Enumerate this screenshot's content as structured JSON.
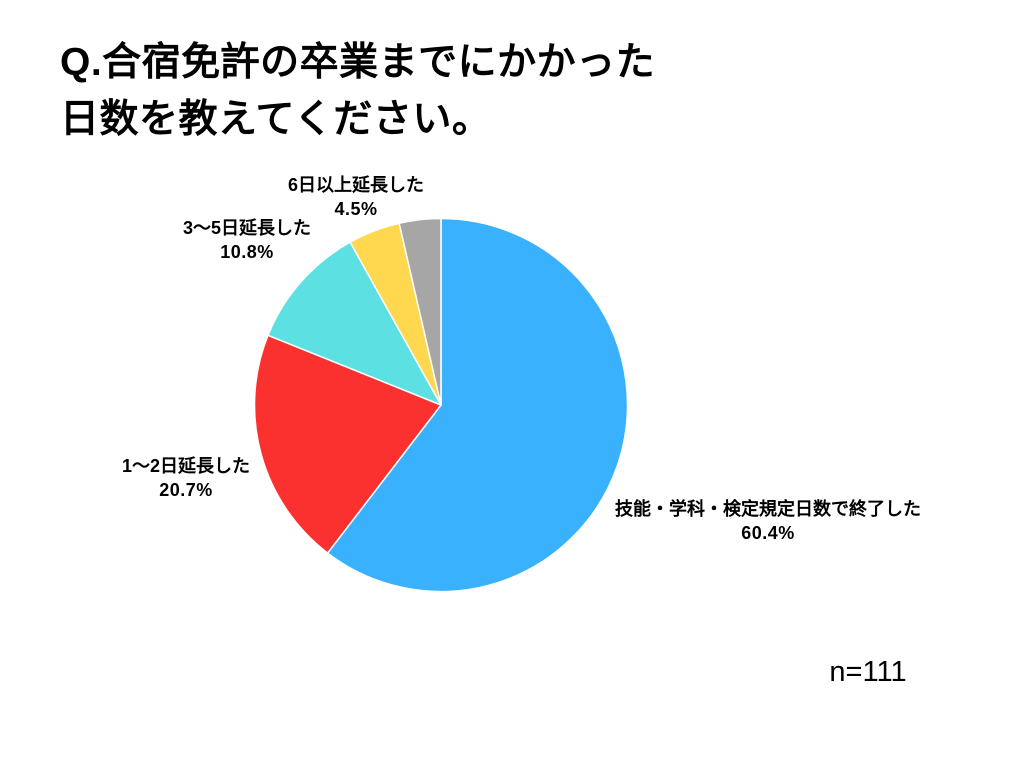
{
  "header": {
    "title_line1": "Q.合宿免許の卒業までにかかった",
    "title_line2": "日数を教えてください。"
  },
  "footer": {
    "sample_size": "n=111"
  },
  "chart_data": {
    "type": "pie",
    "title": "Q.合宿免許の卒業までにかかった日数を教えてください。",
    "sample_size_label": "n=111",
    "start_angle_deg": 0,
    "direction": "clockwise",
    "legend_position": "none",
    "slice_border_color": "#ffffff",
    "slices": [
      {
        "label": "技能・学科・検定規定日数で終了した",
        "pct": 60.4,
        "pct_label": "60.4%",
        "color": "#3AB1FC"
      },
      {
        "label": "1〜2日延長した",
        "pct": 20.7,
        "pct_label": "20.7%",
        "color": "#FB312F"
      },
      {
        "label": "3〜5日延長した",
        "pct": 10.8,
        "pct_label": "10.8%",
        "color": "#5CE0E2"
      },
      {
        "label": "6日以上延長した",
        "pct": 4.5,
        "pct_label": "4.5%",
        "color": "#FFD84F"
      },
      {
        "label": "",
        "pct": 3.6,
        "pct_label": "",
        "color": "#A6A6A6"
      }
    ]
  }
}
